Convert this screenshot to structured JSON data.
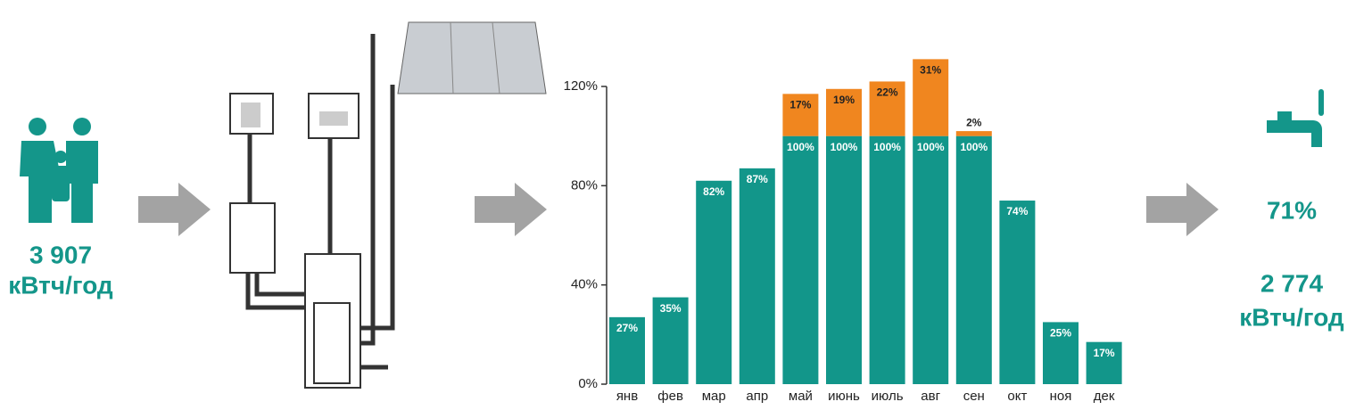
{
  "consumption": {
    "value": "3 907",
    "unit": "кВтч/год"
  },
  "result": {
    "share": "71%",
    "value": "2 774",
    "unit": "кВтч/год"
  },
  "chart_data": {
    "type": "stacked_bar",
    "categories": [
      "янв",
      "фев",
      "мар",
      "апр",
      "май",
      "июнь",
      "июль",
      "авг",
      "сен",
      "окт",
      "ноя",
      "дек"
    ],
    "series": [
      {
        "color": "#12968a",
        "values": [
          27,
          35,
          82,
          87,
          100,
          100,
          100,
          100,
          100,
          74,
          25,
          17
        ],
        "value_labels": [
          "27%",
          "35%",
          "82%",
          "87%",
          "100%",
          "100%",
          "100%",
          "100%",
          "100%",
          "74%",
          "25%",
          "17%"
        ]
      },
      {
        "color": "#f0861f",
        "values": [
          null,
          null,
          null,
          null,
          17,
          19,
          22,
          31,
          2,
          null,
          null,
          null
        ],
        "value_labels": [
          null,
          null,
          null,
          null,
          "17%",
          "19%",
          "22%",
          "31%",
          "2%",
          null,
          null,
          null
        ]
      }
    ],
    "ylim": [
      0,
      120
    ],
    "yticks": [
      {
        "value": 0,
        "label": "0%"
      },
      {
        "value": 40,
        "label": "40%"
      },
      {
        "value": 80,
        "label": "80%"
      },
      {
        "value": 120,
        "label": "120%"
      }
    ]
  }
}
